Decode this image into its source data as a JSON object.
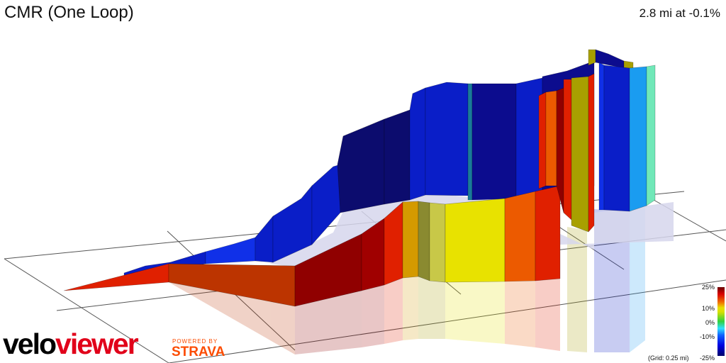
{
  "title": "CMR (One Loop)",
  "summary": "2.8 mi at -0.1%",
  "branding": {
    "logo_part1": "velo",
    "logo_part2": "viewer",
    "powered_by": "POWERED BY",
    "strava": "STRAVA"
  },
  "legend": {
    "ticks": [
      "25%",
      "10%",
      "0%",
      "-10%",
      "-25%"
    ],
    "grid_note": "(Grid: 0.25 mi)"
  },
  "colors": {
    "dark_navy": "#0c0c6e",
    "blue": "#0a1ec8",
    "bright_blue": "#1030e8",
    "cyan": "#1a9cf0",
    "teal": "#70e8b8",
    "yellow": "#e8e200",
    "olive": "#a8a000",
    "orange": "#ec5a00",
    "red": "#e02000",
    "dark_red": "#900000",
    "brick": "#bc3400"
  },
  "chart_data": {
    "type": "3d-elevation-profile",
    "title": "CMR (One Loop)",
    "distance_mi": 2.8,
    "average_grade_pct": -0.1,
    "grid_spacing_mi": 0.25,
    "color_scale": {
      "min_pct": -25,
      "max_pct": 25,
      "ticks_pct": [
        25,
        10,
        0,
        -10,
        -25
      ]
    }
  }
}
